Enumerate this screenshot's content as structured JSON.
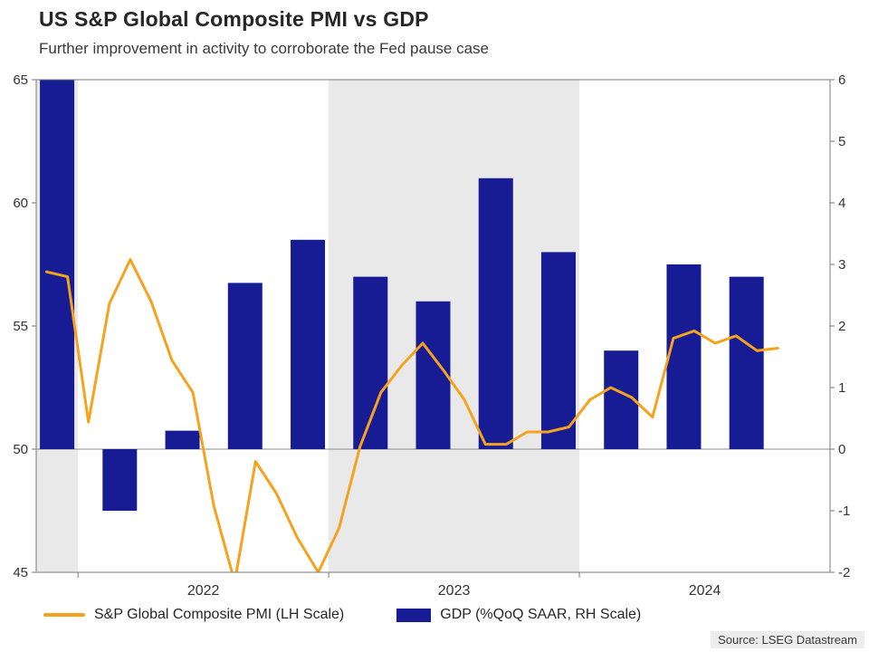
{
  "title": "US S&P Global Composite PMI vs GDP",
  "subtitle": "Further improvement in activity to corroborate the Fed pause case",
  "source": "Source: LSEG Datastream",
  "legend": [
    {
      "label": "S&P Global Composite PMI (LH Scale)",
      "swatch": "line"
    },
    {
      "label": "GDP (%QoQ SAAR, RH Scale)",
      "swatch": "bar"
    }
  ],
  "colors": {
    "line": "#f6a21c",
    "bar": "#181c94",
    "band": "#e9e9e9",
    "frame": "#7a7a7a",
    "zero_line": "#8c8c8c",
    "axis_text": "#333333"
  },
  "chart_data": {
    "type": "mixed",
    "title": "US S&P Global Composite PMI vs GDP",
    "left_axis": {
      "label": "S&P Global Composite PMI",
      "min": 45,
      "max": 65,
      "ticks": [
        45,
        50,
        55,
        60,
        65
      ]
    },
    "right_axis": {
      "label": "GDP %QoQ SAAR",
      "min": -2,
      "max": 6,
      "ticks": [
        -2,
        -1,
        0,
        1,
        2,
        3,
        4,
        5,
        6
      ],
      "zero_line": true
    },
    "x_axis": {
      "start": "Nov 2021",
      "total_months": 38,
      "year_labels": [
        {
          "label": "2022",
          "start_month": 2,
          "end_month": 14
        },
        {
          "label": "2023",
          "start_month": 14,
          "end_month": 26
        },
        {
          "label": "2024",
          "start_month": 26,
          "end_month": 38
        }
      ],
      "shaded_bands": [
        {
          "from_month": 0,
          "to_month": 2
        },
        {
          "from_month": 14,
          "to_month": 26
        }
      ]
    },
    "series": [
      {
        "name": "S&P Global Composite PMI (LH Scale)",
        "type": "line",
        "axis": "left",
        "frequency": "monthly",
        "start": "Nov 2021",
        "values": [
          57.2,
          57.0,
          51.1,
          55.9,
          57.7,
          56.0,
          53.6,
          52.3,
          47.7,
          44.6,
          49.5,
          48.2,
          46.4,
          45.0,
          46.8,
          50.1,
          52.3,
          53.4,
          54.3,
          53.2,
          52.0,
          50.2,
          50.2,
          50.7,
          50.7,
          50.9,
          52.0,
          52.5,
          52.1,
          51.3,
          54.5,
          54.8,
          54.3,
          54.6,
          54.0,
          54.1
        ]
      },
      {
        "name": "GDP (%QoQ SAAR, RH Scale)",
        "type": "bar",
        "axis": "right",
        "frequency": "quarterly",
        "start": "Q4 2021",
        "quarters": [
          "Q4 2021",
          "Q1 2022",
          "Q2 2022",
          "Q3 2022",
          "Q4 2022",
          "Q1 2023",
          "Q2 2023",
          "Q3 2023",
          "Q4 2023",
          "Q1 2024",
          "Q2 2024",
          "Q3 2024"
        ],
        "values": [
          7.0,
          -1.0,
          0.3,
          2.7,
          3.4,
          2.8,
          2.4,
          4.4,
          3.2,
          1.6,
          3.0,
          2.8
        ],
        "first_center_month": 1,
        "month_spacing": 3
      }
    ]
  }
}
